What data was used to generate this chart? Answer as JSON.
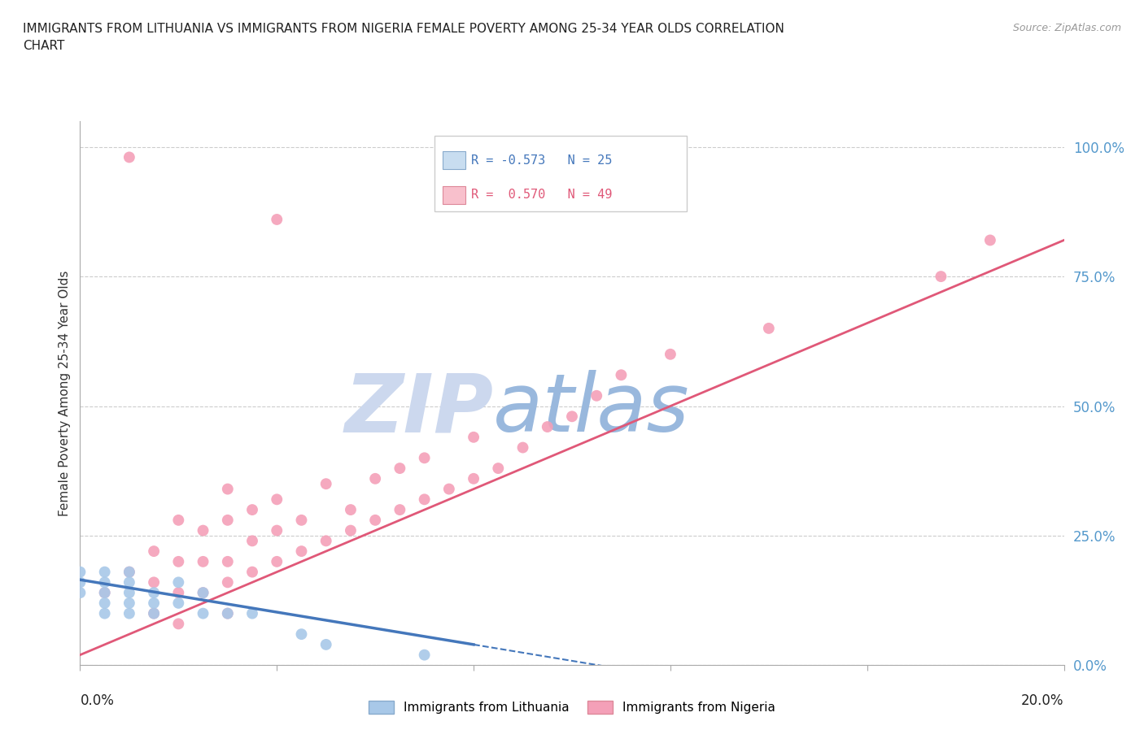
{
  "title": "IMMIGRANTS FROM LITHUANIA VS IMMIGRANTS FROM NIGERIA FEMALE POVERTY AMONG 25-34 YEAR OLDS CORRELATION\nCHART",
  "source": "Source: ZipAtlas.com",
  "ylabel": "Female Poverty Among 25-34 Year Olds",
  "ytick_labels": [
    "0.0%",
    "25.0%",
    "50.0%",
    "75.0%",
    "100.0%"
  ],
  "ytick_values": [
    0.0,
    0.25,
    0.5,
    0.75,
    1.0
  ],
  "xmin": 0.0,
  "xmax": 0.2,
  "ymin": 0.0,
  "ymax": 1.05,
  "R_lithuania": -0.573,
  "N_lithuania": 25,
  "R_nigeria": 0.57,
  "N_nigeria": 49,
  "color_lithuania": "#a8c8e8",
  "color_nigeria": "#f4a0b8",
  "color_line_lithuania": "#4477bb",
  "color_line_nigeria": "#e05878",
  "watermark_zip": "ZIP",
  "watermark_atlas": "atlas",
  "watermark_color_zip": "#ccd8ee",
  "watermark_color_atlas": "#99b8dd",
  "legend_label_lithuania": "Immigrants from Lithuania",
  "legend_label_nigeria": "Immigrants from Nigeria",
  "nigeria_x": [
    0.005,
    0.01,
    0.01,
    0.015,
    0.015,
    0.015,
    0.02,
    0.02,
    0.02,
    0.02,
    0.025,
    0.025,
    0.025,
    0.03,
    0.03,
    0.03,
    0.03,
    0.03,
    0.035,
    0.035,
    0.035,
    0.04,
    0.04,
    0.04,
    0.045,
    0.045,
    0.05,
    0.05,
    0.055,
    0.055,
    0.06,
    0.06,
    0.065,
    0.065,
    0.07,
    0.07,
    0.075,
    0.08,
    0.08,
    0.085,
    0.09,
    0.095,
    0.1,
    0.105,
    0.11,
    0.12,
    0.14,
    0.175,
    0.185
  ],
  "nigeria_y": [
    0.14,
    0.98,
    0.18,
    0.1,
    0.16,
    0.22,
    0.08,
    0.14,
    0.2,
    0.28,
    0.14,
    0.2,
    0.26,
    0.1,
    0.16,
    0.2,
    0.28,
    0.34,
    0.18,
    0.24,
    0.3,
    0.2,
    0.26,
    0.32,
    0.22,
    0.28,
    0.24,
    0.35,
    0.26,
    0.3,
    0.28,
    0.36,
    0.3,
    0.38,
    0.32,
    0.4,
    0.34,
    0.36,
    0.44,
    0.38,
    0.42,
    0.46,
    0.48,
    0.52,
    0.56,
    0.6,
    0.65,
    0.75,
    0.82
  ],
  "nigeria_outlier_x": [
    0.04
  ],
  "nigeria_outlier_y": [
    0.86
  ],
  "nigeria_line_x0": 0.0,
  "nigeria_line_y0": 0.02,
  "nigeria_line_x1": 0.2,
  "nigeria_line_y1": 0.82,
  "lithuania_x": [
    0.0,
    0.0,
    0.0,
    0.005,
    0.005,
    0.005,
    0.005,
    0.005,
    0.01,
    0.01,
    0.01,
    0.01,
    0.01,
    0.015,
    0.015,
    0.015,
    0.02,
    0.02,
    0.025,
    0.025,
    0.03,
    0.035,
    0.045,
    0.05,
    0.07
  ],
  "lithuania_y": [
    0.14,
    0.16,
    0.18,
    0.1,
    0.12,
    0.14,
    0.16,
    0.18,
    0.1,
    0.12,
    0.14,
    0.16,
    0.18,
    0.1,
    0.12,
    0.14,
    0.12,
    0.16,
    0.1,
    0.14,
    0.1,
    0.1,
    0.06,
    0.04,
    0.02
  ],
  "lithuania_line_x0": 0.0,
  "lithuania_line_y0": 0.165,
  "lithuania_line_x1": 0.08,
  "lithuania_line_y1": 0.04,
  "lithuania_line_dash_x0": 0.08,
  "lithuania_line_dash_y0": 0.04,
  "lithuania_line_dash_x1": 0.115,
  "lithuania_line_dash_y1": -0.015
}
